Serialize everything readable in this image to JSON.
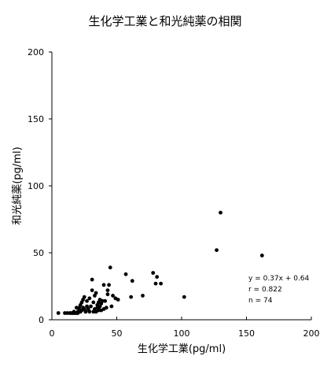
{
  "chart_data": {
    "type": "scatter",
    "title": "生化学工業と和光純薬の相関",
    "xlabel": "生化学工業(pg/ml)",
    "ylabel": "和光純薬(pg/ml)",
    "xlim": [
      0,
      200
    ],
    "ylim": [
      0,
      200
    ],
    "xticks": [
      0,
      50,
      100,
      150,
      200
    ],
    "yticks": [
      0,
      50,
      100,
      150,
      200
    ],
    "grid": false,
    "legend": "none",
    "marker_color": "#000000",
    "annotation": {
      "lines": [
        "y = 0.37x + 0.64",
        "r = 0.822",
        "n = 74"
      ]
    },
    "points": [
      [
        5,
        5
      ],
      [
        10,
        5
      ],
      [
        12,
        5
      ],
      [
        14,
        5
      ],
      [
        15,
        5
      ],
      [
        16,
        5
      ],
      [
        17,
        5
      ],
      [
        18,
        5
      ],
      [
        19,
        5
      ],
      [
        20,
        5
      ],
      [
        17,
        6
      ],
      [
        19,
        9
      ],
      [
        20,
        6
      ],
      [
        21,
        7
      ],
      [
        21,
        9
      ],
      [
        22,
        6
      ],
      [
        22,
        11
      ],
      [
        23,
        7
      ],
      [
        23,
        13
      ],
      [
        24,
        9
      ],
      [
        24,
        15
      ],
      [
        25,
        8
      ],
      [
        25,
        17
      ],
      [
        26,
        6
      ],
      [
        27,
        10
      ],
      [
        27,
        14
      ],
      [
        28,
        8
      ],
      [
        29,
        16
      ],
      [
        30,
        10
      ],
      [
        31,
        22
      ],
      [
        31,
        30
      ],
      [
        32,
        6
      ],
      [
        32,
        13
      ],
      [
        33,
        8
      ],
      [
        33,
        18
      ],
      [
        34,
        6
      ],
      [
        34,
        20
      ],
      [
        35,
        9
      ],
      [
        35,
        11
      ],
      [
        36,
        7
      ],
      [
        36,
        13
      ],
      [
        37,
        10
      ],
      [
        37,
        15
      ],
      [
        38,
        7
      ],
      [
        38,
        12
      ],
      [
        39,
        14
      ],
      [
        40,
        8
      ],
      [
        40,
        26
      ],
      [
        41,
        14
      ],
      [
        42,
        9
      ],
      [
        43,
        19
      ],
      [
        43,
        22
      ],
      [
        44,
        26
      ],
      [
        45,
        39
      ],
      [
        46,
        10
      ],
      [
        47,
        18
      ],
      [
        49,
        16
      ],
      [
        51,
        15
      ],
      [
        57,
        34
      ],
      [
        61,
        17
      ],
      [
        62,
        29
      ],
      [
        70,
        18
      ],
      [
        78,
        35
      ],
      [
        80,
        27
      ],
      [
        81,
        32
      ],
      [
        84,
        27
      ],
      [
        102,
        17
      ],
      [
        127,
        52
      ],
      [
        130,
        80
      ],
      [
        162,
        48
      ],
      [
        26,
        6
      ],
      [
        29,
        6
      ],
      [
        34,
        6
      ],
      [
        36,
        8
      ]
    ]
  }
}
